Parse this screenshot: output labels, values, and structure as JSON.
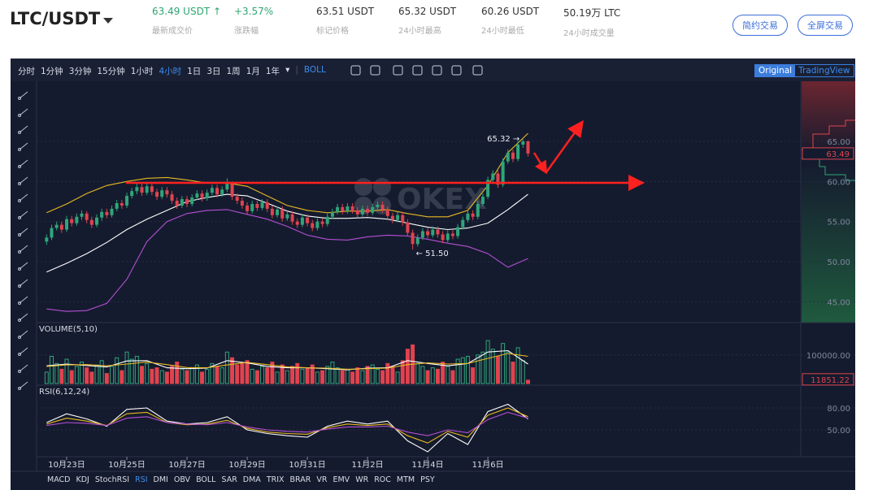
{
  "header": {
    "pair": "LTC/USDT",
    "stats": [
      {
        "value": "63.49 USDT ↑",
        "label": "最新成交价"
      },
      {
        "value": "+3.57%",
        "label": "涨跌幅"
      },
      {
        "value": "63.51 USDT",
        "label": "标记价格"
      },
      {
        "value": "65.32 USDT",
        "label": "24小时最高"
      },
      {
        "value": "60.26 USDT",
        "label": "24小时最低"
      },
      {
        "value": "50.19万 LTC",
        "label": "24小时成交量"
      }
    ],
    "buttons": [
      "简约交易",
      "全屏交易"
    ]
  },
  "toolbar": {
    "intervals": [
      "分时",
      "1分钟",
      "3分钟",
      "15分钟",
      "1小时",
      "4小时",
      "1日",
      "3日",
      "1周",
      "1月",
      "1年"
    ],
    "active_interval": "4小时",
    "indicator": "BOLL",
    "views": [
      "Original",
      "TradingView"
    ],
    "active_view": "Original"
  },
  "indicators": {
    "items": [
      "MACD",
      "KDJ",
      "StochRSI",
      "RSI",
      "DMI",
      "OBV",
      "BOLL",
      "SAR",
      "DMA",
      "TRIX",
      "BRAR",
      "VR",
      "EMV",
      "WR",
      "ROC",
      "MTM",
      "PSY"
    ],
    "active": "RSI"
  },
  "chart_data": [
    {
      "type": "candlestick",
      "watermark": "OKEX",
      "up_color": "#2fa57a",
      "down_color": "#e0434f",
      "xlim": [
        -2,
        150.4
      ],
      "ylim": [
        42.4,
        72.5
      ],
      "yticks": [
        {
          "value": 45,
          "label": "45.00"
        },
        {
          "value": 50,
          "label": "50.00"
        },
        {
          "value": 55,
          "label": "55.00"
        },
        {
          "value": 60,
          "label": "60.00"
        },
        {
          "value": 65,
          "label": "65.00"
        }
      ],
      "x": [
        0,
        1,
        2,
        3,
        4,
        5,
        6,
        7,
        8,
        9,
        10,
        11,
        12,
        13,
        14,
        15,
        16,
        17,
        18,
        19,
        20,
        21,
        22,
        23,
        24,
        25,
        26,
        27,
        28,
        29,
        30,
        31,
        32,
        33,
        34,
        35,
        36,
        37,
        38,
        39,
        40,
        41,
        42,
        43,
        44,
        45,
        46,
        47,
        48,
        49,
        50,
        51,
        52,
        53,
        54,
        55,
        56,
        57,
        58,
        59,
        60,
        61,
        62,
        63,
        64,
        65,
        66,
        67,
        68,
        69,
        70,
        71,
        72,
        73,
        74,
        75,
        76,
        77,
        78,
        79,
        80,
        81,
        82,
        83,
        84,
        85,
        86,
        87,
        88,
        89,
        90,
        91,
        92,
        93,
        94,
        95,
        96
      ],
      "ohlc": [
        [
          52.5,
          53.4,
          52.1,
          53.0
        ],
        [
          53.0,
          54.6,
          52.7,
          54.2
        ],
        [
          54.2,
          55.0,
          53.9,
          54.6
        ],
        [
          54.6,
          55.0,
          53.6,
          54.0
        ],
        [
          54.0,
          55.7,
          53.7,
          55.3
        ],
        [
          55.3,
          55.7,
          54.4,
          54.8
        ],
        [
          54.8,
          56.0,
          54.5,
          55.6
        ],
        [
          55.6,
          56.4,
          55.2,
          56.0
        ],
        [
          56.0,
          56.3,
          54.8,
          55.2
        ],
        [
          55.2,
          55.6,
          54.2,
          54.6
        ],
        [
          54.6,
          55.9,
          54.3,
          55.5
        ],
        [
          55.5,
          56.6,
          55.1,
          56.2
        ],
        [
          56.2,
          56.6,
          55.4,
          55.8
        ],
        [
          55.8,
          57.0,
          55.5,
          56.6
        ],
        [
          56.6,
          57.7,
          56.3,
          57.3
        ],
        [
          57.3,
          57.7,
          56.6,
          57.0
        ],
        [
          57.0,
          58.6,
          56.7,
          58.2
        ],
        [
          58.2,
          59.2,
          57.9,
          58.8
        ],
        [
          58.8,
          59.8,
          58.4,
          59.3
        ],
        [
          59.3,
          59.7,
          58.2,
          58.6
        ],
        [
          58.6,
          59.8,
          58.3,
          59.4
        ],
        [
          59.4,
          59.8,
          58.3,
          58.7
        ],
        [
          58.7,
          59.1,
          57.7,
          58.1
        ],
        [
          58.1,
          59.3,
          57.8,
          58.9
        ],
        [
          58.9,
          59.3,
          58.0,
          58.4
        ],
        [
          58.4,
          58.8,
          57.2,
          57.6
        ],
        [
          57.6,
          58.0,
          56.6,
          57.0
        ],
        [
          57.0,
          58.2,
          56.7,
          57.8
        ],
        [
          57.8,
          58.2,
          56.8,
          57.2
        ],
        [
          57.2,
          58.4,
          56.9,
          58.0
        ],
        [
          58.0,
          58.9,
          57.7,
          58.5
        ],
        [
          58.5,
          58.9,
          57.5,
          57.9
        ],
        [
          57.9,
          59.0,
          57.6,
          58.6
        ],
        [
          58.6,
          59.6,
          58.3,
          59.2
        ],
        [
          59.2,
          59.6,
          58.0,
          58.4
        ],
        [
          58.4,
          59.4,
          58.1,
          59.0
        ],
        [
          59.0,
          60.4,
          58.7,
          59.7
        ],
        [
          59.7,
          60.0,
          57.7,
          58.1
        ],
        [
          58.1,
          58.5,
          57.2,
          57.6
        ],
        [
          57.6,
          58.0,
          56.6,
          57.0
        ],
        [
          57.0,
          57.4,
          55.9,
          56.3
        ],
        [
          56.3,
          57.6,
          56.0,
          57.2
        ],
        [
          57.2,
          57.6,
          56.3,
          56.7
        ],
        [
          56.7,
          57.8,
          56.4,
          57.4
        ],
        [
          57.4,
          57.8,
          56.2,
          56.6
        ],
        [
          56.6,
          57.0,
          55.4,
          55.8
        ],
        [
          55.8,
          56.9,
          55.5,
          56.5
        ],
        [
          56.5,
          56.9,
          55.0,
          55.4
        ],
        [
          55.4,
          56.3,
          55.1,
          55.9
        ],
        [
          55.9,
          56.3,
          54.6,
          55.0
        ],
        [
          55.0,
          55.4,
          54.2,
          54.6
        ],
        [
          54.6,
          55.9,
          54.3,
          55.5
        ],
        [
          55.5,
          55.9,
          54.4,
          54.8
        ],
        [
          54.8,
          55.2,
          53.8,
          54.2
        ],
        [
          54.2,
          55.4,
          53.9,
          55.0
        ],
        [
          55.0,
          55.4,
          54.3,
          54.7
        ],
        [
          54.7,
          56.0,
          54.4,
          55.6
        ],
        [
          55.6,
          56.6,
          55.3,
          56.2
        ],
        [
          56.2,
          57.2,
          55.9,
          56.8
        ],
        [
          56.8,
          57.2,
          55.9,
          56.3
        ],
        [
          56.3,
          57.3,
          56.0,
          56.9
        ],
        [
          56.9,
          57.3,
          56.0,
          56.4
        ],
        [
          56.4,
          56.8,
          55.5,
          55.9
        ],
        [
          55.9,
          57.0,
          55.6,
          56.6
        ],
        [
          56.6,
          57.0,
          55.7,
          56.1
        ],
        [
          56.1,
          57.2,
          55.8,
          56.8
        ],
        [
          56.8,
          57.5,
          56.5,
          57.1
        ],
        [
          57.1,
          57.5,
          56.1,
          56.5
        ],
        [
          56.5,
          56.9,
          55.3,
          55.7
        ],
        [
          55.7,
          56.1,
          54.8,
          55.2
        ],
        [
          55.2,
          56.2,
          54.9,
          55.8
        ],
        [
          55.8,
          56.2,
          54.5,
          54.9
        ],
        [
          54.9,
          55.3,
          53.2,
          53.6
        ],
        [
          53.6,
          54.0,
          51.5,
          52.2
        ],
        [
          52.2,
          53.4,
          51.9,
          53.0
        ],
        [
          53.0,
          54.2,
          52.7,
          53.8
        ],
        [
          53.8,
          54.2,
          52.9,
          53.3
        ],
        [
          53.3,
          54.4,
          53.0,
          54.0
        ],
        [
          54.0,
          54.4,
          53.0,
          53.4
        ],
        [
          53.4,
          53.8,
          52.3,
          52.7
        ],
        [
          52.7,
          53.9,
          52.4,
          53.5
        ],
        [
          53.5,
          53.9,
          52.8,
          53.2
        ],
        [
          53.2,
          54.7,
          52.9,
          54.3
        ],
        [
          54.3,
          55.6,
          54.0,
          55.2
        ],
        [
          55.2,
          56.4,
          54.9,
          56.0
        ],
        [
          56.0,
          56.4,
          55.2,
          55.6
        ],
        [
          55.6,
          57.6,
          55.3,
          57.2
        ],
        [
          57.2,
          58.5,
          56.9,
          58.1
        ],
        [
          58.1,
          60.6,
          57.8,
          60.2
        ],
        [
          60.2,
          61.4,
          59.9,
          61.0
        ],
        [
          61.0,
          61.4,
          59.2,
          59.6
        ],
        [
          59.6,
          62.9,
          59.3,
          62.5
        ],
        [
          62.5,
          64.0,
          62.2,
          63.6
        ],
        [
          63.6,
          64.0,
          62.4,
          62.8
        ],
        [
          62.8,
          65.0,
          62.5,
          64.6
        ],
        [
          64.6,
          65.32,
          64.2,
          65.0
        ],
        [
          65.0,
          65.1,
          63.1,
          63.49
        ]
      ],
      "max_label": "65.32 →",
      "min_label": "← 51.50",
      "last_price_label": "63.49",
      "line_x": [
        0,
        4,
        8,
        12,
        16,
        20,
        24,
        28,
        32,
        36,
        40,
        44,
        48,
        52,
        56,
        60,
        64,
        68,
        72,
        76,
        80,
        84,
        88,
        92,
        96
      ],
      "lines": [
        {
          "color": "#e8b923",
          "values": [
            56.1,
            57.2,
            58.5,
            59.5,
            60.0,
            60.4,
            60.5,
            60.2,
            59.8,
            59.8,
            59.4,
            58.2,
            57.0,
            56.4,
            56.1,
            56.3,
            56.3,
            56.5,
            56.0,
            55.6,
            55.6,
            56.4,
            59.5,
            63.6,
            66.0
          ]
        },
        {
          "color": "#ffffff",
          "values": [
            48.7,
            49.8,
            51.0,
            52.4,
            54.0,
            55.3,
            56.4,
            57.5,
            58.0,
            58.4,
            58.2,
            57.3,
            56.3,
            55.7,
            55.4,
            55.4,
            55.5,
            55.3,
            54.8,
            54.3,
            54.0,
            54.2,
            54.8,
            56.5,
            58.4
          ]
        },
        {
          "color": "#b44fd6",
          "values": [
            44.1,
            43.8,
            43.9,
            44.8,
            47.8,
            52.5,
            55.0,
            56.0,
            56.4,
            56.5,
            55.9,
            55.3,
            54.4,
            53.3,
            52.8,
            52.7,
            53.1,
            53.3,
            53.2,
            52.8,
            52.3,
            51.9,
            51.0,
            49.3,
            50.4
          ]
        }
      ]
    },
    {
      "type": "bar",
      "title": "VOLUME(5,10)",
      "xlim": [
        -2,
        150.4
      ],
      "ylim": [
        0,
        210000
      ],
      "yticks": [
        {
          "value": 100000,
          "label": "100000.00"
        }
      ],
      "values": [
        40000,
        95000,
        70000,
        50000,
        85000,
        45000,
        60000,
        75000,
        55000,
        40000,
        65000,
        80000,
        35000,
        60000,
        90000,
        45000,
        110000,
        85000,
        95000,
        60000,
        70000,
        50000,
        55000,
        45000,
        40000,
        60000,
        75000,
        50000,
        45000,
        55000,
        65000,
        40000,
        50000,
        70000,
        60000,
        55000,
        110000,
        90000,
        65000,
        70000,
        80000,
        50000,
        45000,
        60000,
        55000,
        75000,
        40000,
        65000,
        45000,
        60000,
        70000,
        50000,
        55000,
        65000,
        40000,
        45000,
        60000,
        75000,
        55000,
        45000,
        50000,
        40000,
        55000,
        45000,
        60000,
        65000,
        50000,
        45000,
        70000,
        60000,
        40000,
        80000,
        120000,
        135000,
        70000,
        60000,
        45000,
        55000,
        50000,
        75000,
        60000,
        45000,
        85000,
        90000,
        95000,
        55000,
        100000,
        110000,
        150000,
        120000,
        95000,
        140000,
        110000,
        75000,
        125000,
        80000,
        11851.22
      ],
      "last_value_label": "11851.22",
      "lines": [
        {
          "color": "#ffffff",
          "values": [
            62000,
            68000,
            63000,
            58000,
            79000,
            80000,
            55000,
            52000,
            54000,
            80000,
            72000,
            60000,
            55000,
            55000,
            52000,
            48000,
            54000,
            55000,
            80000,
            70000,
            62000,
            70000,
            110000,
            115000,
            68000
          ]
        },
        {
          "color": "#e8b923",
          "values": [
            60000,
            65000,
            66000,
            62000,
            68000,
            75000,
            66000,
            56000,
            55000,
            65000,
            74000,
            66000,
            58000,
            55000,
            54000,
            50000,
            52000,
            54000,
            66000,
            72000,
            68000,
            70000,
            88000,
            105000,
            95000
          ]
        }
      ]
    },
    {
      "type": "line",
      "title": "RSI(6,12,24)",
      "xlim": [
        -2,
        150.4
      ],
      "ylim": [
        15.6,
        110
      ],
      "yticks": [
        {
          "value": 50,
          "label": "50.00"
        },
        {
          "value": 80,
          "label": "80.00"
        }
      ],
      "xticks": [
        {
          "value": 4,
          "label": "10月23日"
        },
        {
          "value": 16,
          "label": "10月25日"
        },
        {
          "value": 28,
          "label": "10月27日"
        },
        {
          "value": 40,
          "label": "10月29日"
        },
        {
          "value": 52,
          "label": "10月31日"
        },
        {
          "value": 64,
          "label": "11月2日"
        },
        {
          "value": 76,
          "label": "11月4日"
        },
        {
          "value": 88,
          "label": "11月6日"
        }
      ],
      "x": [
        0,
        4,
        8,
        12,
        16,
        20,
        24,
        28,
        32,
        36,
        40,
        44,
        48,
        52,
        56,
        60,
        64,
        68,
        72,
        76,
        80,
        84,
        88,
        92,
        96
      ],
      "series": [
        {
          "color": "#ffffff",
          "values": [
            60,
            72,
            65,
            55,
            78,
            80,
            62,
            58,
            60,
            68,
            50,
            45,
            42,
            40,
            55,
            62,
            58,
            62,
            35,
            20,
            45,
            30,
            75,
            85,
            65
          ]
        },
        {
          "color": "#e8b923",
          "values": [
            58,
            66,
            62,
            56,
            72,
            74,
            60,
            57,
            58,
            63,
            52,
            47,
            45,
            44,
            53,
            58,
            56,
            58,
            42,
            32,
            48,
            40,
            70,
            80,
            68
          ]
        },
        {
          "color": "#b44fd6",
          "values": [
            56,
            60,
            59,
            56,
            66,
            68,
            60,
            58,
            57,
            60,
            54,
            50,
            48,
            47,
            51,
            54,
            54,
            55,
            47,
            42,
            50,
            46,
            64,
            74,
            66
          ]
        }
      ]
    }
  ]
}
